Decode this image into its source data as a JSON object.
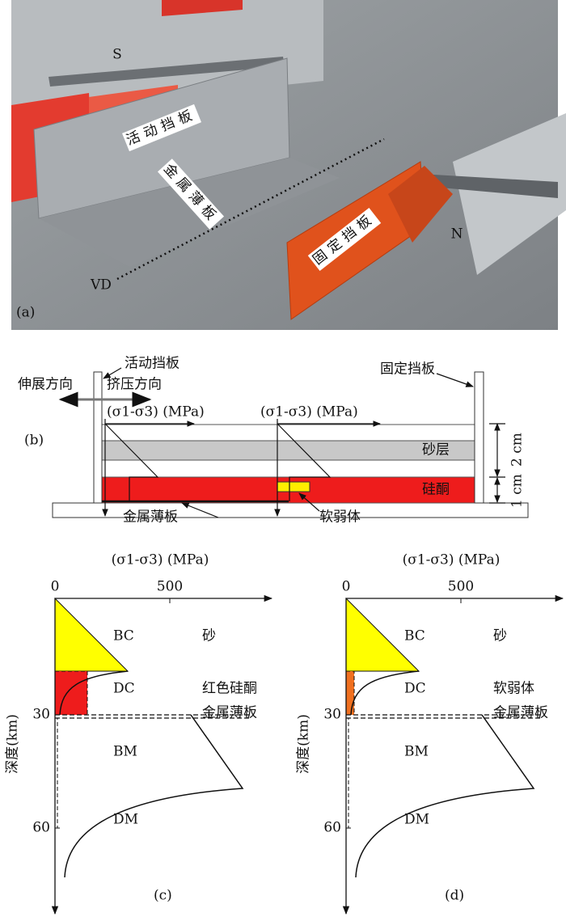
{
  "panel_a": {
    "label": "(a)",
    "moving_plate": "活动挡板",
    "metal_sheet": "金属薄板",
    "fixed_plate": "固定挡板",
    "south": "S",
    "north": "N",
    "vd": "VD"
  },
  "panel_b": {
    "label": "(b)",
    "moving_plate": "活动挡板",
    "extension": "伸展方向",
    "compression": "挤压方向",
    "fixed_plate": "固定挡板",
    "stress_axis_left": "(σ1-σ3) (MPa)",
    "stress_axis_right": "(σ1-σ3) (MPa)",
    "sand_layer": "砂层",
    "silicone": "硅酮",
    "thickness_sand": "2 cm",
    "thickness_silicone": "1 cm",
    "metal_sheet": "金属薄板",
    "weak_body": "软弱体"
  },
  "panels": [
    {
      "label": "(c)",
      "x_axis_title": "(σ1-σ3) (MPa)",
      "x_ticks": [
        0,
        500
      ],
      "y_ticks": [
        30,
        60
      ],
      "y_axis_title": "深度(km)",
      "bc": "BC",
      "bc_material": "砂",
      "dc": "DC",
      "dc_material": "红色硅酮",
      "sheet": "金属薄板",
      "bm": "BM",
      "dm": "DM"
    },
    {
      "label": "(d)",
      "x_axis_title": "(σ1-σ3) (MPa)",
      "x_ticks": [
        0,
        500
      ],
      "y_ticks": [
        30,
        60
      ],
      "y_axis_title": "深度(km)",
      "bc": "BC",
      "bc_material": "砂",
      "dc": "DC",
      "dc_material": "软弱体",
      "sheet": "金属薄板",
      "bm": "BM",
      "dm": "DM"
    }
  ]
}
